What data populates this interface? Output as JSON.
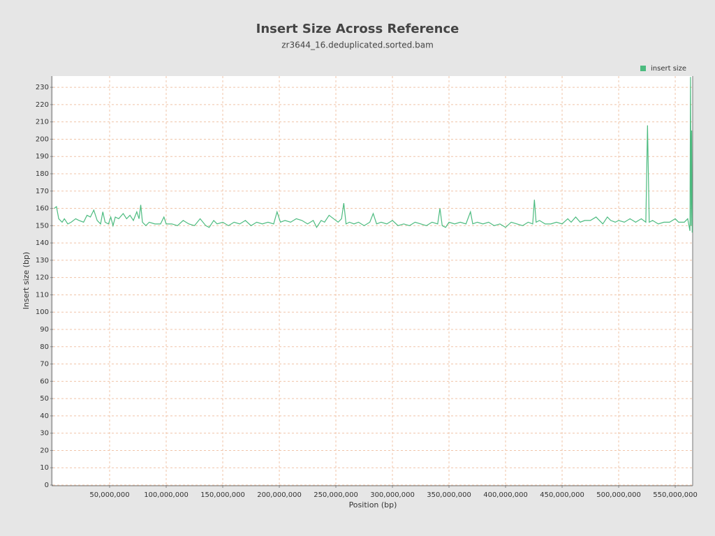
{
  "chart_data": {
    "type": "line",
    "title": "Insert Size Across Reference",
    "subtitle": "zr3644_16.deduplicated.sorted.bam",
    "x_label": "Position (bp)",
    "y_label": "Insert size (bp)",
    "grid": true,
    "legend": "top-right",
    "x": [
      1000000,
      3000000,
      5000000,
      8000000,
      10000000,
      13000000,
      16000000,
      20000000,
      23000000,
      27000000,
      30000000,
      33000000,
      36000000,
      39000000,
      42000000,
      44000000,
      46000000,
      49000000,
      51000000,
      53000000,
      55000000,
      58000000,
      62000000,
      65000000,
      68000000,
      71000000,
      74000000,
      76000000,
      77500000,
      79000000,
      82000000,
      85000000,
      90000000,
      95000000,
      98000000,
      100000000,
      105000000,
      110000000,
      115000000,
      120000000,
      125000000,
      130000000,
      135000000,
      138000000,
      142000000,
      145000000,
      150000000,
      155000000,
      160000000,
      165000000,
      170000000,
      175000000,
      180000000,
      185000000,
      190000000,
      195000000,
      198000000,
      201000000,
      205000000,
      210000000,
      215000000,
      220000000,
      225000000,
      230000000,
      233000000,
      237000000,
      240000000,
      244000000,
      248000000,
      252000000,
      255000000,
      257000000,
      259000000,
      262000000,
      266000000,
      270000000,
      275000000,
      280000000,
      283000000,
      286000000,
      290000000,
      295000000,
      300000000,
      305000000,
      310000000,
      315000000,
      320000000,
      325000000,
      330000000,
      335000000,
      340000000,
      342000000,
      344000000,
      347000000,
      350000000,
      355000000,
      360000000,
      365000000,
      369000000,
      371000000,
      375000000,
      380000000,
      385000000,
      390000000,
      395000000,
      400000000,
      405000000,
      410000000,
      415000000,
      420000000,
      424000000,
      425500000,
      427000000,
      430000000,
      435000000,
      440000000,
      445000000,
      450000000,
      455000000,
      458000000,
      462000000,
      466000000,
      470000000,
      475000000,
      480000000,
      483000000,
      486000000,
      490000000,
      493000000,
      497000000,
      500000000,
      505000000,
      510000000,
      515000000,
      520000000,
      524000000,
      525500000,
      527000000,
      530000000,
      535000000,
      540000000,
      545000000,
      550000000,
      553000000,
      558000000,
      561000000,
      563000000,
      563500000,
      564000000,
      564500000,
      565000000
    ],
    "series": [
      {
        "name": "insert size",
        "color": "#4cbb7f",
        "values": [
          160,
          161,
          154,
          152,
          154,
          151,
          152,
          154,
          153,
          152,
          156,
          155,
          159,
          153,
          151,
          158,
          152,
          151,
          155,
          150,
          155,
          154,
          157,
          154,
          156,
          153,
          158,
          154,
          162,
          152,
          150,
          152,
          151,
          151,
          155,
          151,
          151,
          150,
          153,
          151,
          150,
          154,
          150,
          149,
          153,
          151,
          152,
          150,
          152,
          151,
          153,
          150,
          152,
          151,
          152,
          151,
          158,
          152,
          153,
          152,
          154,
          153,
          151,
          153,
          149,
          153,
          152,
          156,
          154,
          152,
          154,
          163,
          151,
          152,
          151,
          152,
          150,
          152,
          157,
          151,
          152,
          151,
          153,
          150,
          151,
          150,
          152,
          151,
          150,
          152,
          151,
          160,
          150,
          149,
          152,
          151,
          152,
          151,
          158,
          151,
          152,
          151,
          152,
          150,
          151,
          149,
          152,
          151,
          150,
          152,
          151,
          165,
          152,
          153,
          151,
          151,
          152,
          151,
          154,
          152,
          155,
          152,
          153,
          153,
          155,
          153,
          151,
          155,
          153,
          152,
          153,
          152,
          154,
          152,
          154,
          152,
          208,
          152,
          153,
          151,
          152,
          152,
          154,
          152,
          152,
          154,
          147,
          236,
          150,
          205,
          146
        ]
      }
    ],
    "xlim": [
      0,
      565400000
    ],
    "ylim": [
      0,
      236.5
    ],
    "xticks": [
      {
        "value": 50000000,
        "label": "50,000,000"
      },
      {
        "value": 100000000,
        "label": "100,000,000"
      },
      {
        "value": 150000000,
        "label": "150,000,000"
      },
      {
        "value": 200000000,
        "label": "200,000,000"
      },
      {
        "value": 250000000,
        "label": "250,000,000"
      },
      {
        "value": 300000000,
        "label": "300,000,000"
      },
      {
        "value": 350000000,
        "label": "350,000,000"
      },
      {
        "value": 400000000,
        "label": "400,000,000"
      },
      {
        "value": 450000000,
        "label": "450,000,000"
      },
      {
        "value": 500000000,
        "label": "500,000,000"
      },
      {
        "value": 550000000,
        "label": "550,000,000"
      }
    ],
    "yticks": [
      0,
      10,
      20,
      30,
      40,
      50,
      60,
      70,
      80,
      90,
      100,
      110,
      120,
      130,
      140,
      150,
      160,
      170,
      180,
      190,
      200,
      210,
      220,
      230
    ]
  }
}
